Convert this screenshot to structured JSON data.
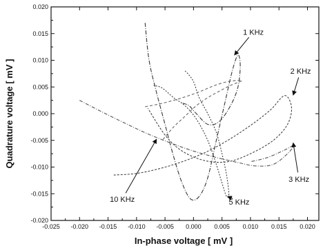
{
  "chart_data": {
    "type": "line",
    "title": "",
    "xlabel": "In-phase voltage [ mV ]",
    "ylabel": "Quadrature voltage [ mV ]",
    "xlim": [
      -0.025,
      0.022
    ],
    "ylim": [
      -0.02,
      0.02
    ],
    "xticks": [
      -0.025,
      -0.02,
      -0.015,
      -0.01,
      -0.005,
      0.0,
      0.005,
      0.01,
      0.015,
      0.02
    ],
    "xtick_labels": [
      "-0.025",
      "-0.020",
      "-0.015",
      "-0.010",
      "-0.005",
      "0.000",
      "0.005",
      "0.010",
      "0.015",
      "0.020"
    ],
    "yticks": [
      -0.02,
      -0.015,
      -0.01,
      -0.005,
      0.0,
      0.005,
      0.01,
      0.015,
      0.02
    ],
    "ytick_labels": [
      "-0.020",
      "-0.015",
      "-0.010",
      "-0.005",
      "0.000",
      "0.005",
      "0.010",
      "0.015",
      "0.020"
    ],
    "grid": false,
    "legend": "none",
    "series": [
      {
        "name": "1 KHz",
        "color": "#333333",
        "dash": "6,2,1,2",
        "x": [
          -0.0085,
          -0.0078,
          -0.0065,
          -0.005,
          -0.0035,
          -0.002,
          -0.0005,
          0.001,
          0.0025,
          0.004,
          0.0055,
          0.0068,
          0.0078,
          0.0082,
          0.0078,
          0.0065,
          0.0045,
          0.0025,
          0.0005,
          -0.0008,
          -0.002
        ],
        "y": [
          0.017,
          0.01,
          0.004,
          -0.002,
          -0.008,
          -0.013,
          -0.016,
          -0.0155,
          -0.012,
          -0.005,
          0.002,
          0.008,
          0.011,
          0.009,
          0.005,
          0.0015,
          -0.0015,
          -0.002,
          0.0,
          0.0015,
          0.002
        ]
      },
      {
        "name": "2 KHz",
        "color": "#444444",
        "dash": "3,2",
        "x": [
          -0.014,
          -0.01,
          -0.006,
          -0.002,
          0.002,
          0.006,
          0.01,
          0.0135,
          0.016,
          0.0172,
          0.0165,
          0.014,
          0.01,
          0.006,
          0.002,
          -0.002,
          -0.005,
          -0.008
        ],
        "y": [
          -0.0115,
          -0.0112,
          -0.0103,
          -0.009,
          -0.0073,
          -0.005,
          -0.0022,
          0.0007,
          0.0034,
          0.0012,
          -0.002,
          -0.005,
          -0.0075,
          -0.009,
          -0.0088,
          -0.007,
          -0.004,
          0.001
        ]
      },
      {
        "name": "3 KHz",
        "color": "#555555",
        "dash": "5,2,1,2",
        "x": [
          -0.02,
          -0.016,
          -0.012,
          -0.008,
          -0.004,
          0.0,
          0.004,
          0.008,
          0.011,
          0.014,
          0.0165,
          0.0175,
          0.016,
          0.013,
          0.01
        ],
        "y": [
          0.0025,
          0.0003,
          -0.0018,
          -0.0038,
          -0.0055,
          -0.007,
          -0.0082,
          -0.0092,
          -0.0098,
          -0.0095,
          -0.0075,
          -0.006,
          -0.0068,
          -0.0082,
          -0.009
        ]
      },
      {
        "name": "5 KHz",
        "color": "#3a3a3a",
        "dash": "2,2",
        "x": [
          -0.0015,
          -0.001,
          0.0,
          0.001,
          0.0025,
          0.004,
          0.005,
          0.0058,
          0.0062,
          0.0058,
          0.005,
          0.004,
          0.0025,
          0.0005,
          -0.0015,
          -0.0035,
          -0.0055,
          -0.007
        ],
        "y": [
          0.008,
          0.0075,
          0.006,
          0.003,
          0.0,
          -0.0035,
          -0.0075,
          -0.0115,
          -0.015,
          -0.0155,
          -0.013,
          -0.0095,
          -0.005,
          -0.001,
          0.0015,
          0.003,
          0.0048,
          0.0053
        ]
      },
      {
        "name": "10 KHz",
        "color": "#666666",
        "dash": "4,3",
        "x": [
          -0.0085,
          -0.0065,
          -0.0045,
          -0.0025,
          -0.0005,
          0.0015,
          0.0035,
          0.006,
          0.0085,
          0.0065,
          0.0045,
          0.0025,
          0.0005,
          -0.0015,
          -0.0035,
          -0.0055
        ],
        "y": [
          0.0013,
          0.0017,
          0.0022,
          0.0028,
          0.0035,
          0.0043,
          0.0052,
          0.006,
          0.0062,
          0.0053,
          0.0042,
          0.003,
          0.0015,
          -0.0005,
          -0.0025,
          -0.005
        ]
      }
    ],
    "annotations": [
      {
        "text": "1 KHz",
        "x": 0.0105,
        "y": 0.0148,
        "arrow_to": [
          0.0072,
          0.011
        ]
      },
      {
        "text": "2 KHz",
        "x": 0.0188,
        "y": 0.0075,
        "arrow_to": [
          0.0175,
          0.0035
        ]
      },
      {
        "text": "3 KHz",
        "x": 0.0185,
        "y": -0.0128,
        "arrow_to": [
          0.0175,
          -0.0055
        ]
      },
      {
        "text": "5 KHz",
        "x": 0.008,
        "y": -0.017,
        "arrow_to": [
          0.006,
          -0.0155
        ]
      },
      {
        "text": "10 KHz",
        "x": -0.0125,
        "y": -0.0165,
        "arrow_to": [
          -0.0065,
          -0.0048
        ]
      }
    ]
  }
}
